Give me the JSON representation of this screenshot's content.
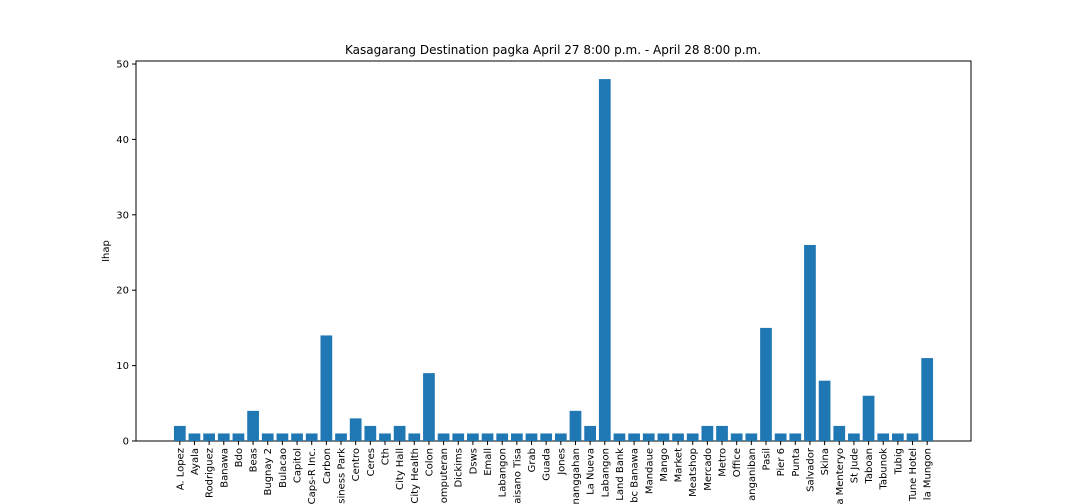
{
  "chart_data": {
    "type": "bar",
    "title": "Kasagarang Destination pagka April 27 8:00 p.m. - April 28 8:00 p.m.",
    "y_label": "Ihap",
    "categories": [
      "A. Lopez",
      "Ayala",
      "Rodriguez",
      "Banawa",
      "Bdo",
      "Beas",
      "Bugnay 2",
      "Bulacao",
      "Capitol",
      "Caps-R Inc.",
      "Carbon",
      "isiness Park",
      "Centro",
      "Ceres",
      "Cth",
      "City Hall",
      "City Health",
      "Colon",
      "omputeran",
      "Dickims",
      "Dsws",
      "Emall",
      "Labangon",
      "aisano Tisa",
      "Grab",
      "Guada",
      "Jones",
      "nanggahan",
      "La Nueva",
      "Labangon",
      "Land Bank",
      "bc Banawa",
      "Mandaue",
      "Mango",
      "Market",
      "Meatshop",
      "Mercado",
      "Metro",
      "Office",
      "anganiban",
      "Pasil",
      "Pier 6",
      "Punta",
      "Salvador",
      "Skina",
      "a Menteryo",
      "St Jude",
      "Taboan",
      "Tabunok",
      "Tubig",
      "Tune Hotel",
      "la Mungon"
    ],
    "values": [
      2,
      1,
      1,
      1,
      1,
      4,
      1,
      1,
      1,
      1,
      14,
      1,
      3,
      2,
      1,
      2,
      1,
      9,
      1,
      1,
      1,
      1,
      1,
      1,
      1,
      1,
      1,
      4,
      2,
      48,
      1,
      1,
      1,
      1,
      1,
      1,
      2,
      2,
      1,
      1,
      15,
      1,
      1,
      26,
      8,
      2,
      1,
      6,
      1,
      1,
      1,
      11
    ],
    "color": "#1f77b4",
    "ylim": [
      0,
      50.4
    ],
    "yticks": [
      0,
      10,
      20,
      30,
      40,
      50
    ]
  }
}
